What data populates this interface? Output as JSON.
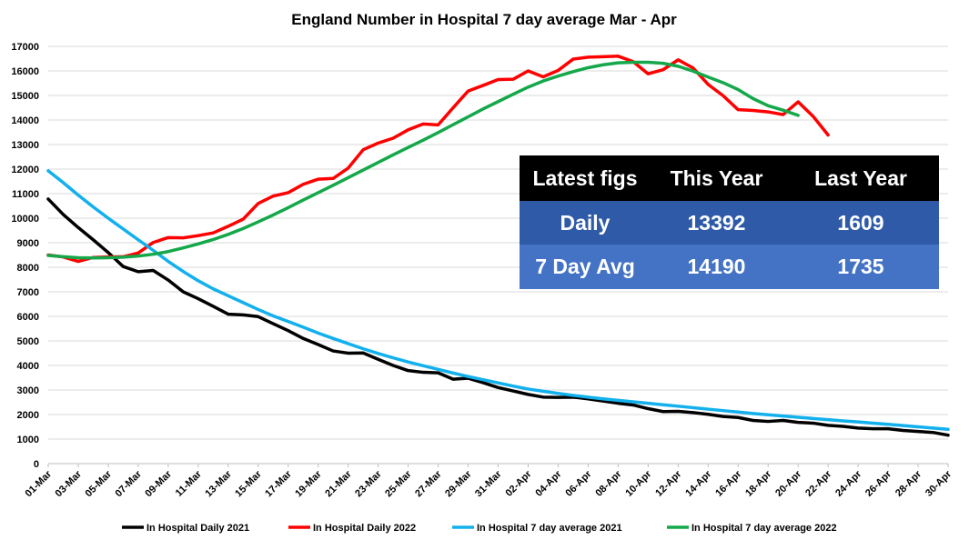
{
  "chart_data": {
    "type": "line",
    "title": "England Number in Hospital 7 day average Mar - Apr",
    "xlabel": "",
    "ylabel": "",
    "ylim": [
      0,
      17000
    ],
    "yticks": [
      0,
      1000,
      2000,
      3000,
      4000,
      5000,
      6000,
      7000,
      8000,
      9000,
      10000,
      11000,
      12000,
      13000,
      14000,
      15000,
      16000,
      17000
    ],
    "grid": true,
    "legend": "bottom",
    "x": [
      "01-Mar",
      "02-Mar",
      "03-Mar",
      "04-Mar",
      "05-Mar",
      "06-Mar",
      "07-Mar",
      "08-Mar",
      "09-Mar",
      "10-Mar",
      "11-Mar",
      "12-Mar",
      "13-Mar",
      "14-Mar",
      "15-Mar",
      "16-Mar",
      "17-Mar",
      "18-Mar",
      "19-Mar",
      "20-Mar",
      "21-Mar",
      "22-Mar",
      "23-Mar",
      "24-Mar",
      "25-Mar",
      "26-Mar",
      "27-Mar",
      "28-Mar",
      "29-Mar",
      "30-Mar",
      "31-Mar",
      "01-Apr",
      "02-Apr",
      "03-Apr",
      "04-Apr",
      "05-Apr",
      "06-Apr",
      "07-Apr",
      "08-Apr",
      "09-Apr",
      "10-Apr",
      "11-Apr",
      "12-Apr",
      "13-Apr",
      "14-Apr",
      "15-Apr",
      "16-Apr",
      "17-Apr",
      "18-Apr",
      "19-Apr",
      "20-Apr",
      "21-Apr",
      "22-Apr",
      "23-Apr",
      "24-Apr",
      "25-Apr",
      "26-Apr",
      "27-Apr",
      "28-Apr",
      "29-Apr",
      "30-Apr"
    ],
    "x_tick_labels": [
      "01-Mar",
      "03-Mar",
      "05-Mar",
      "07-Mar",
      "09-Mar",
      "11-Mar",
      "13-Mar",
      "15-Mar",
      "17-Mar",
      "19-Mar",
      "21-Mar",
      "23-Mar",
      "25-Mar",
      "27-Mar",
      "29-Mar",
      "31-Mar",
      "02-Apr",
      "04-Apr",
      "06-Apr",
      "08-Apr",
      "10-Apr",
      "12-Apr",
      "14-Apr",
      "16-Apr",
      "18-Apr",
      "20-Apr",
      "22-Apr",
      "24-Apr",
      "26-Apr",
      "28-Apr",
      "30-Apr"
    ],
    "series": [
      {
        "name": "In Hospital Daily 2021",
        "color": "#000000",
        "values": [
          10780,
          10150,
          9620,
          9120,
          8600,
          8030,
          7820,
          7870,
          7480,
          7000,
          6720,
          6410,
          6090,
          6060,
          5990,
          5700,
          5420,
          5100,
          4850,
          4590,
          4500,
          4510,
          4250,
          4000,
          3790,
          3720,
          3700,
          3440,
          3480,
          3300,
          3100,
          2960,
          2820,
          2710,
          2700,
          2710,
          2640,
          2550,
          2460,
          2390,
          2240,
          2120,
          2130,
          2080,
          2010,
          1920,
          1880,
          1760,
          1720,
          1760,
          1680,
          1650,
          1560,
          1520,
          1450,
          1420,
          1420,
          1350,
          1310,
          1270,
          1160
        ]
      },
      {
        "name": "In Hospital Daily 2022",
        "color": "#ff0000",
        "values": [
          8500,
          8420,
          8240,
          8400,
          8420,
          8430,
          8580,
          9010,
          9210,
          9200,
          9290,
          9400,
          9670,
          9960,
          10600,
          10900,
          11040,
          11380,
          11590,
          11620,
          12040,
          12790,
          13060,
          13260,
          13600,
          13840,
          13800,
          14500,
          15180,
          15410,
          15650,
          15660,
          16000,
          15760,
          16020,
          16480,
          16560,
          16580,
          16600,
          16380,
          15880,
          16050,
          16450,
          16120,
          15450,
          14990,
          14420,
          14390,
          14330,
          14220,
          14740,
          14150,
          13390,
          null,
          null,
          null,
          null,
          null,
          null,
          null,
          null
        ]
      },
      {
        "name": "In Hospital 7 day average 2021",
        "color": "#12b0ec",
        "values": [
          11930,
          11450,
          10940,
          10460,
          10000,
          9560,
          9120,
          8690,
          8240,
          7830,
          7450,
          7120,
          6840,
          6560,
          6280,
          6020,
          5790,
          5560,
          5320,
          5100,
          4890,
          4680,
          4490,
          4310,
          4140,
          3990,
          3840,
          3690,
          3550,
          3420,
          3290,
          3160,
          3040,
          2950,
          2860,
          2780,
          2710,
          2640,
          2580,
          2520,
          2460,
          2400,
          2340,
          2280,
          2220,
          2160,
          2100,
          2040,
          1990,
          1940,
          1890,
          1840,
          1790,
          1740,
          1700,
          1650,
          1600,
          1550,
          1500,
          1450,
          1400
        ]
      },
      {
        "name": "In Hospital 7 day average 2022",
        "color": "#14a84a",
        "values": [
          8480,
          8430,
          8390,
          8380,
          8390,
          8410,
          8460,
          8530,
          8640,
          8790,
          8950,
          9130,
          9340,
          9580,
          9850,
          10130,
          10430,
          10740,
          11040,
          11340,
          11650,
          11960,
          12270,
          12580,
          12880,
          13180,
          13490,
          13810,
          14130,
          14450,
          14750,
          15050,
          15340,
          15590,
          15790,
          15970,
          16130,
          16250,
          16330,
          16350,
          16350,
          16310,
          16190,
          15990,
          15750,
          15520,
          15240,
          14870,
          14580,
          14400,
          14190,
          null,
          null,
          null,
          null,
          null,
          null,
          null,
          null,
          null,
          null
        ]
      }
    ]
  },
  "figs_table": {
    "headers": [
      "Latest figs",
      "This Year",
      "Last Year"
    ],
    "rows": [
      {
        "label": "Daily",
        "this_year": "13392",
        "last_year": "1609"
      },
      {
        "label": "7 Day Avg",
        "this_year": "14190",
        "last_year": "1735"
      }
    ]
  },
  "colors": {
    "table_header_bg": "#000000",
    "table_row1_bg": "#2e5aa7",
    "table_row2_bg": "#4472c4",
    "gridline": "#d9d9d9"
  }
}
